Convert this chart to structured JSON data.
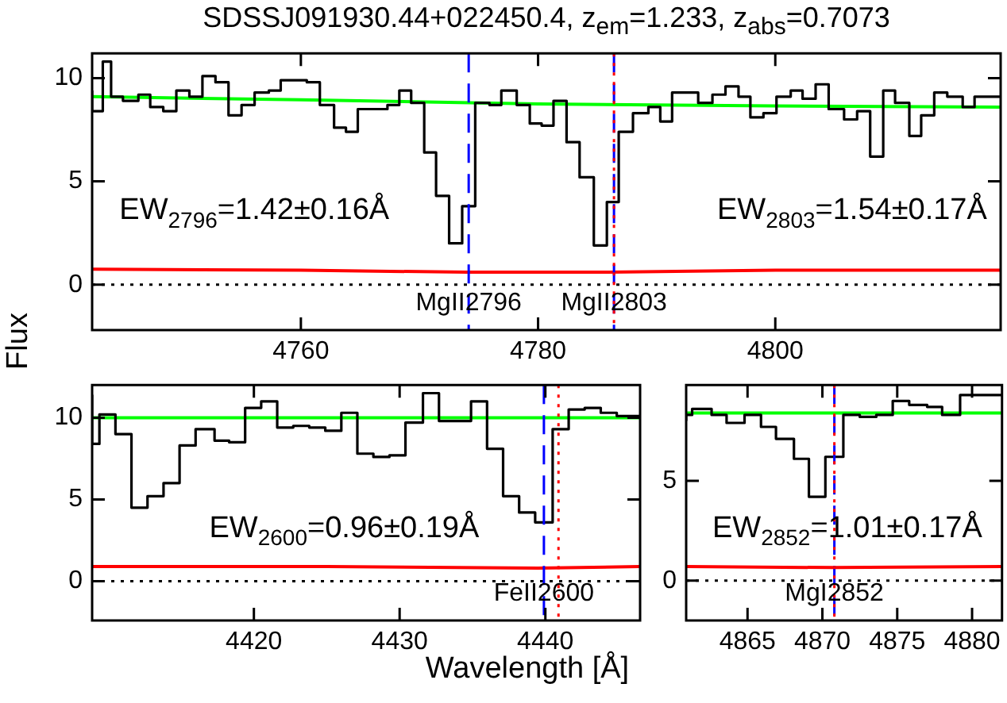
{
  "chart_data": [
    {
      "type": "step",
      "title": "SDSSJ091930.44+022450.4, z$_{em}$=1.233, z$_{abs}$=0.7073",
      "ylabel": "Flux",
      "xlim": [
        4742.4,
        4819.0
      ],
      "ylim": [
        -2.2,
        11.2
      ],
      "xticks": [
        4760,
        4780,
        4800
      ],
      "yticks": [
        0,
        5,
        10
      ],
      "series": [
        {
          "type": "step",
          "color": "#000000",
          "x": [
            4742.4,
            4743.3,
            4744.0,
            4745.0,
            4746.3,
            4747.3,
            4748.4,
            4749.5,
            4750.6,
            4751.7,
            4752.8,
            4753.9,
            4755.0,
            4756.1,
            4757.3,
            4758.3,
            4759.4,
            4760.5,
            4761.6,
            4762.8,
            4763.8,
            4764.8,
            4766.0,
            4767.3,
            4768.3,
            4769.3,
            4770.4,
            4771.4,
            4772.5,
            4773.6,
            4774.7,
            4775.9,
            4776.9,
            4778.2,
            4779.3,
            4780.3,
            4781.3,
            4782.4,
            4783.5,
            4784.7,
            4785.8,
            4786.8,
            4788.0,
            4789.3,
            4790.3,
            4791.3,
            4792.4,
            4793.5,
            4794.7,
            4795.8,
            4796.9,
            4797.9,
            4799.0,
            4800.1,
            4801.3,
            4802.3,
            4803.4,
            4804.5,
            4805.8,
            4806.9,
            4808.0,
            4809.1,
            4810.1,
            4811.3,
            4812.3,
            4813.4,
            4814.5,
            4815.8,
            4816.8,
            4817.8,
            4819.0
          ],
          "values": [
            9.4,
            8.4,
            10.8,
            9.1,
            8.9,
            9.2,
            8.6,
            8.4,
            9.4,
            9.1,
            10.1,
            9.8,
            8.2,
            8.7,
            9.3,
            9.4,
            9.9,
            9.9,
            9.8,
            8.7,
            7.6,
            7.4,
            8.5,
            8.5,
            8.7,
            9.4,
            8.8,
            6.4,
            4.3,
            2.0,
            3.8,
            8.8,
            8.7,
            9.4,
            8.7,
            7.8,
            7.7,
            8.9,
            6.9,
            5.2,
            1.9,
            4.0,
            7.4,
            8.3,
            8.6,
            7.9,
            9.3,
            9.3,
            8.8,
            9.2,
            9.6,
            9.1,
            8.1,
            8.3,
            9.1,
            9.4,
            9.0,
            9.7,
            8.5,
            8.0,
            8.4,
            6.2,
            9.4,
            8.8,
            7.2,
            8.2,
            9.3,
            9.1,
            8.6,
            9.1,
            9.1
          ]
        },
        {
          "type": "line",
          "color": "#00ff00",
          "x": [
            4742.4,
            4760,
            4780,
            4800,
            4819.0
          ],
          "values": [
            9.1,
            8.95,
            8.75,
            8.65,
            8.6
          ]
        },
        {
          "type": "line",
          "color": "#ff0000",
          "x": [
            4742.4,
            4760,
            4774,
            4786,
            4800,
            4819.0
          ],
          "values": [
            0.75,
            0.7,
            0.6,
            0.6,
            0.7,
            0.7
          ]
        }
      ],
      "ref_lines": [
        {
          "axis": "y",
          "value": 0,
          "color": "#000000",
          "line_style": "dotted"
        },
        {
          "axis": "x",
          "value": 4774.15,
          "color": "#0000ff",
          "line_style": "dashed",
          "label": "MgII2796"
        },
        {
          "axis": "x",
          "value": 4786.4,
          "color": "#0000ff",
          "line_style": "dashed",
          "label": "MgII2803"
        },
        {
          "axis": "x",
          "value": 4786.4,
          "color": "#ff0000",
          "line_style": "dotted"
        }
      ],
      "annotations": [
        "EW$_{2796}$=1.42±0.16Å",
        "EW$_{2803}$=1.54±0.17Å"
      ]
    },
    {
      "type": "step",
      "xlabel": "Wavelength [Å]",
      "xlim": [
        4408.9,
        4446.5
      ],
      "ylim": [
        -2.4,
        12
      ],
      "xticks": [
        4420,
        4430,
        4440
      ],
      "yticks": [
        0,
        5,
        10
      ],
      "series": [
        {
          "type": "step",
          "color": "#000000",
          "x": [
            4408.9,
            4409.4,
            4410.5,
            4411.6,
            4412.7,
            4413.8,
            4414.9,
            4416.0,
            4417.3,
            4418.3,
            4419.4,
            4420.5,
            4421.6,
            4422.7,
            4423.8,
            4424.9,
            4426.0,
            4427.1,
            4428.2,
            4429.3,
            4430.4,
            4431.6,
            4432.7,
            4433.8,
            4434.9,
            4436.0,
            4437.1,
            4438.2,
            4439.3,
            4440.5,
            4441.6,
            4442.7,
            4443.8,
            4444.9,
            4446.0,
            4446.5
          ],
          "values": [
            11.4,
            8.4,
            10.2,
            9.0,
            4.5,
            5.2,
            6.0,
            8.3,
            9.3,
            8.6,
            8.5,
            10.6,
            11.0,
            9.4,
            9.5,
            9.4,
            9.2,
            10.3,
            7.8,
            7.6,
            7.7,
            9.7,
            11.5,
            9.8,
            9.8,
            11.0,
            8.1,
            5.2,
            4.2,
            3.6,
            9.3,
            10.5,
            10.6,
            10.3,
            10.1,
            10.1
          ]
        },
        {
          "type": "line",
          "color": "#00ff00",
          "x": [
            4408.9,
            4446.5
          ],
          "values": [
            10.0,
            10.0
          ]
        },
        {
          "type": "line",
          "color": "#ff0000",
          "x": [
            4408.9,
            4425,
            4439.5,
            4446.5
          ],
          "values": [
            0.9,
            0.9,
            0.8,
            0.9
          ]
        }
      ],
      "ref_lines": [
        {
          "axis": "y",
          "value": 0,
          "color": "#000000",
          "line_style": "dotted"
        },
        {
          "axis": "x",
          "value": 4439.9,
          "color": "#0000ff",
          "line_style": "dashed",
          "label": "FeII2600"
        },
        {
          "axis": "x",
          "value": 4440.9,
          "color": "#ff0000",
          "line_style": "dotted"
        }
      ],
      "annotations": [
        "EW$_{2600}$=0.96±0.19Å"
      ]
    },
    {
      "type": "step",
      "xlim": [
        4860.9,
        4882.0
      ],
      "ylim": [
        -2,
        9.8
      ],
      "xticks": [
        4865,
        4870,
        4875,
        4880
      ],
      "yticks": [
        0,
        5
      ],
      "series": [
        {
          "type": "step",
          "color": "#000000",
          "x": [
            4860.9,
            4861.3,
            4862.6,
            4863.6,
            4864.8,
            4865.9,
            4866.9,
            4868.1,
            4869.1,
            4870.2,
            4871.4,
            4872.5,
            4873.6,
            4874.7,
            4875.8,
            4877.0,
            4878.0,
            4879.2,
            4880.2,
            4882.0
          ],
          "values": [
            8.0,
            8.3,
            8.6,
            8.3,
            7.9,
            8.3,
            7.7,
            7.1,
            6.1,
            4.2,
            6.2,
            8.3,
            8.2,
            8.3,
            9.0,
            8.8,
            8.7,
            8.3,
            9.3,
            9.3
          ]
        },
        {
          "type": "line",
          "color": "#00ff00",
          "x": [
            4860.9,
            4882.0
          ],
          "values": [
            8.4,
            8.4
          ]
        },
        {
          "type": "line",
          "color": "#ff0000",
          "x": [
            4860.9,
            4870.8,
            4882.0
          ],
          "values": [
            0.7,
            0.65,
            0.7
          ]
        }
      ],
      "ref_lines": [
        {
          "axis": "y",
          "value": 0,
          "color": "#000000",
          "line_style": "dotted"
        },
        {
          "axis": "x",
          "value": 4870.8,
          "color": "#0000ff",
          "line_style": "dashed",
          "label": "MgI2852"
        },
        {
          "axis": "x",
          "value": 4870.8,
          "color": "#ff0000",
          "line_style": "dotted"
        }
      ],
      "annotations": [
        "EW$_{2852}$=1.01±0.17Å"
      ]
    }
  ]
}
